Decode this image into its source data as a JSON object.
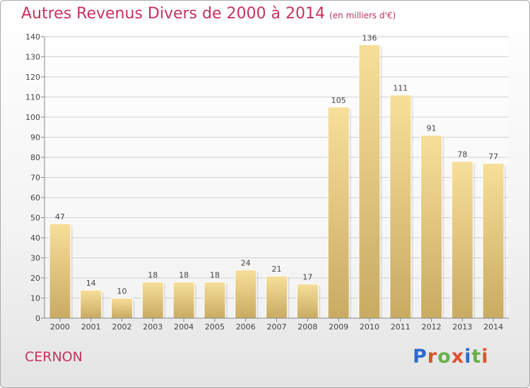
{
  "header": {
    "title": "Autres Revenus Divers de 2000 à 2014",
    "subtitle": "(en milliers d'€)"
  },
  "footer": {
    "commune": "CERNON",
    "logo": "Proxiti",
    "logo_colors": [
      "#2c6bd0",
      "#e0502c",
      "#6ab04c",
      "#e0502c",
      "#2c6bd0",
      "#6ab04c",
      "#e0502c"
    ]
  },
  "chart_data": {
    "type": "bar",
    "title": "Autres Revenus Divers de 2000 à 2014",
    "subtitle": "(en milliers d'€)",
    "categories": [
      "2000",
      "2001",
      "2002",
      "2003",
      "2004",
      "2005",
      "2006",
      "2007",
      "2008",
      "2009",
      "2010",
      "2011",
      "2012",
      "2013",
      "2014"
    ],
    "values": [
      47,
      14,
      10,
      18,
      18,
      18,
      24,
      21,
      17,
      105,
      136,
      111,
      91,
      78,
      77
    ],
    "ylim": [
      0,
      140
    ],
    "yticks": [
      0,
      10,
      20,
      30,
      40,
      50,
      60,
      70,
      80,
      90,
      100,
      110,
      120,
      130,
      140
    ],
    "grid": true,
    "bar_color_top": "#f7df9a",
    "bar_color_bottom": "#c9ab62"
  }
}
